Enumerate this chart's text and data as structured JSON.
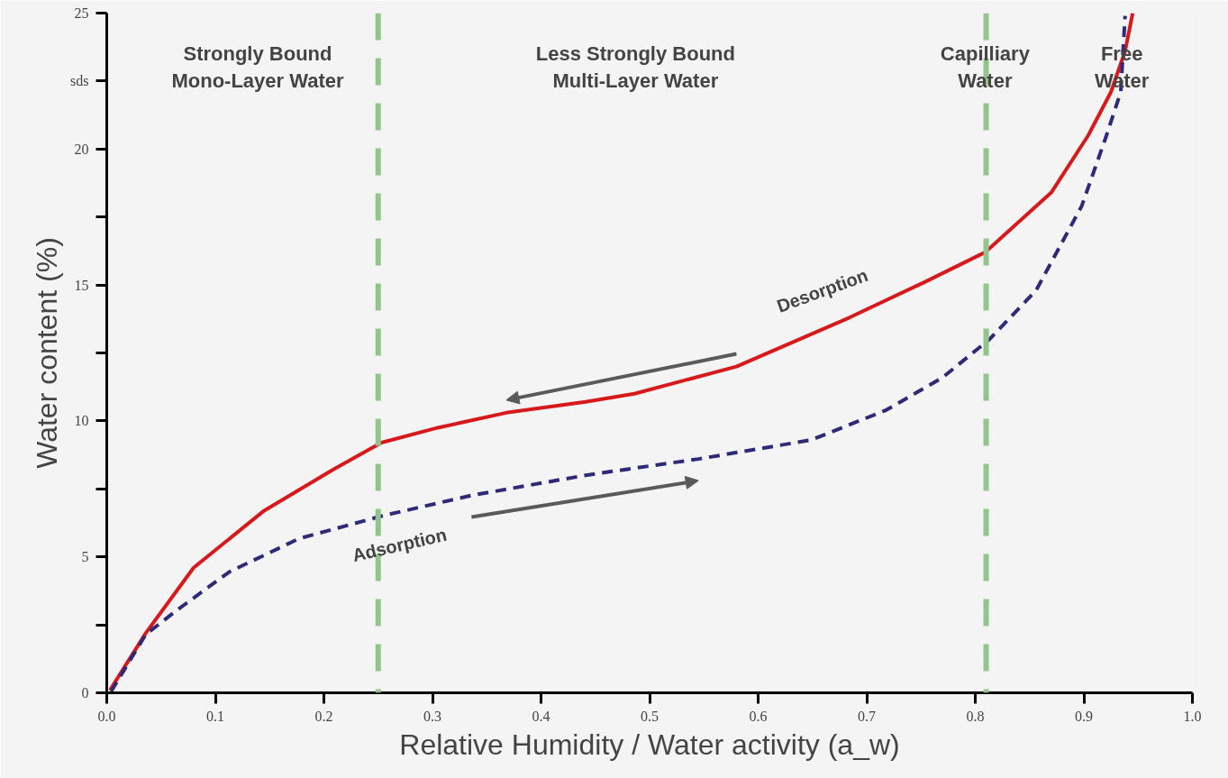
{
  "chart_data": {
    "type": "line",
    "xlabel": "Relative Humidity / Water activity (a_w)",
    "ylabel": "Water content (%)",
    "xlim": [
      0,
      1
    ],
    "ylim": [
      0,
      25
    ],
    "xticks": [
      {
        "value": 0,
        "label": "0.0"
      },
      0.1,
      0.2,
      0.3,
      0.4,
      0.5,
      0.6,
      0.7,
      0.8,
      0.9,
      {
        "value": 1,
        "label": "1.0"
      }
    ],
    "yticks": [
      0,
      {
        "value": 2.5,
        "label": null
      },
      5,
      {
        "value": 7.5,
        "label": null
      },
      10,
      {
        "value": 12.5,
        "label": null
      },
      15,
      {
        "value": 17.5,
        "label": null
      },
      20,
      {
        "value": 22.5,
        "label": "sds"
      },
      25
    ],
    "series": [
      {
        "name": "Desorption",
        "color": "#d7191c",
        "line_style": "solid",
        "x": [
          0.003,
          0.036,
          0.08,
          0.145,
          0.208,
          0.253,
          0.305,
          0.368,
          0.441,
          0.486,
          0.58,
          0.684,
          0.753,
          0.809,
          0.87,
          0.904,
          0.925,
          0.938,
          0.945
        ],
        "values": [
          0.1,
          2.2,
          4.6,
          6.7,
          8.2,
          9.2,
          9.75,
          10.3,
          10.7,
          11.0,
          12.0,
          13.8,
          15.1,
          16.2,
          18.4,
          20.5,
          22.1,
          23.6,
          25.0
        ]
      },
      {
        "name": "Adsorption",
        "color": "#2e2a78",
        "line_style": "dashed",
        "x": [
          0.004,
          0.036,
          0.065,
          0.113,
          0.177,
          0.253,
          0.336,
          0.441,
          0.486,
          0.545,
          0.649,
          0.718,
          0.77,
          0.813,
          0.856,
          0.898,
          0.92,
          0.934,
          0.938
        ],
        "values": [
          0.05,
          2.15,
          3.05,
          4.45,
          5.67,
          6.5,
          7.26,
          8.0,
          8.26,
          8.6,
          9.3,
          10.4,
          11.6,
          13.0,
          14.8,
          17.9,
          20.4,
          22.1,
          24.9
        ]
      }
    ],
    "ref_lines": [
      {
        "axis": "x",
        "value": 0.25,
        "color": "#93c48b",
        "line_style": "dashed"
      },
      {
        "axis": "x",
        "value": 0.81,
        "color": "#93c48b",
        "line_style": "dashed"
      }
    ],
    "annotations": [
      "Strongly Bound\nMono-Layer Water",
      "Less Strongly Bound\nMulti-Layer Water",
      "Capilliary\nWater",
      "Free\nWater"
    ],
    "grid": false,
    "legend": false,
    "marker": "none"
  }
}
